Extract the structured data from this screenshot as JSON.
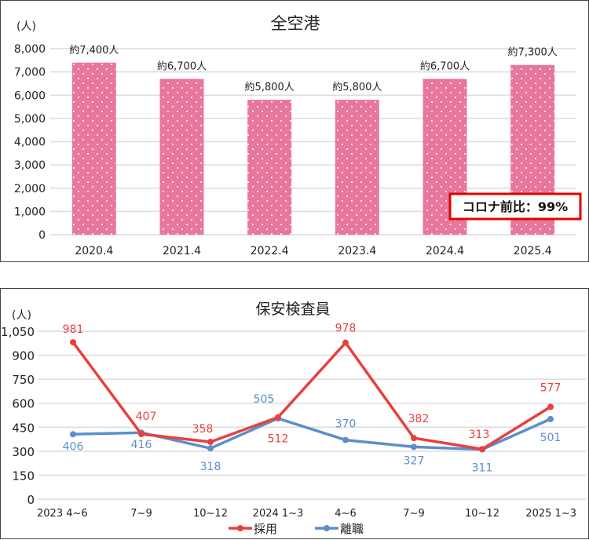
{
  "chart_data": [
    {
      "type": "bar",
      "title": "全空港",
      "ylabel": "(人)",
      "categories": [
        "2020.4",
        "2021.4",
        "2022.4",
        "2023.4",
        "2024.4",
        "2025.4"
      ],
      "values": [
        7400,
        6700,
        5800,
        5800,
        6700,
        7300
      ],
      "data_labels": [
        "約7,400人",
        "約6,700人",
        "約5,800人",
        "約5,800人",
        "約6,700人",
        "約7,300人"
      ],
      "ylim": [
        0,
        8000
      ],
      "yticks": [
        0,
        1000,
        2000,
        3000,
        4000,
        5000,
        6000,
        7000,
        8000
      ],
      "ytick_labels": [
        "0",
        "1,000",
        "2,000",
        "3,000",
        "4,000",
        "5,000",
        "6,000",
        "7,000",
        "8,000"
      ],
      "grid": true,
      "bar_color": "#e8779c",
      "annotation": "コロナ前比：99%",
      "annotation_border_color": "#e00000"
    },
    {
      "type": "line",
      "title": "保安検査員",
      "ylabel": "(人)",
      "categories": [
        "2023 4~6",
        "7~9",
        "10~12",
        "2024 1~3",
        "4~6",
        "7~9",
        "10~12",
        "2025 1~3"
      ],
      "ylim": [
        0,
        1050
      ],
      "yticks": [
        0,
        150,
        300,
        450,
        600,
        750,
        900,
        1050
      ],
      "ytick_labels": [
        "0",
        "150",
        "300",
        "450",
        "600",
        "750",
        "900",
        "1,050"
      ],
      "grid": true,
      "legend_position": "bottom",
      "series": [
        {
          "name": "採用",
          "color": "#e8403f",
          "values": [
            981,
            407,
            358,
            512,
            978,
            382,
            313,
            577
          ]
        },
        {
          "name": "離職",
          "color": "#5b8fcb",
          "values": [
            406,
            416,
            318,
            505,
            370,
            327,
            311,
            501
          ]
        }
      ]
    }
  ]
}
